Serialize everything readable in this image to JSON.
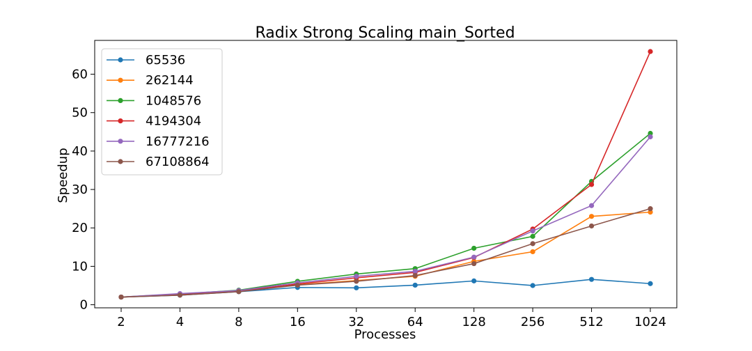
{
  "chart_data": {
    "type": "line",
    "title": "Radix Strong Scaling main_Sorted",
    "xlabel": "Processes",
    "ylabel": "Speedup",
    "categories": [
      "2",
      "4",
      "8",
      "16",
      "32",
      "64",
      "128",
      "256",
      "512",
      "1024"
    ],
    "ylim": [
      -0.8,
      68.8
    ],
    "yticks": [
      0,
      10,
      20,
      30,
      40,
      50,
      60
    ],
    "grid": false,
    "legend_position": "top-left",
    "series": [
      {
        "name": "65536",
        "color": "#1f77b4",
        "values": [
          2.0,
          2.5,
          3.4,
          4.5,
          4.4,
          5.1,
          6.2,
          5.0,
          6.6,
          5.5
        ]
      },
      {
        "name": "262144",
        "color": "#ff7f0e",
        "values": [
          2.0,
          2.6,
          3.5,
          5.2,
          6.3,
          7.4,
          11.3,
          13.8,
          23.0,
          24.1
        ]
      },
      {
        "name": "1048576",
        "color": "#2ca02c",
        "values": [
          2.0,
          2.8,
          3.8,
          6.1,
          8.0,
          9.4,
          14.7,
          17.8,
          32.1,
          44.6
        ]
      },
      {
        "name": "4194304",
        "color": "#d62728",
        "values": [
          2.0,
          2.6,
          3.5,
          5.4,
          7.0,
          8.4,
          12.3,
          19.7,
          31.3,
          65.9
        ]
      },
      {
        "name": "16777216",
        "color": "#9467bd",
        "values": [
          2.0,
          2.9,
          3.7,
          5.7,
          7.4,
          8.7,
          12.4,
          19.2,
          25.8,
          43.7
        ]
      },
      {
        "name": "67108864",
        "color": "#8c564b",
        "values": [
          2.0,
          2.5,
          3.4,
          5.1,
          6.1,
          7.6,
          10.7,
          15.9,
          20.5,
          25.0
        ]
      }
    ]
  }
}
